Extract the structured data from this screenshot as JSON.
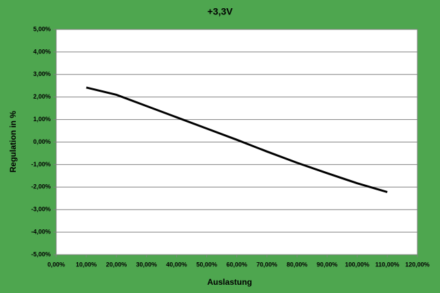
{
  "chart_data": {
    "type": "line",
    "title": "+3,3V",
    "x_label": "Auslastung",
    "y_label": "Regulation in %",
    "x": [
      10,
      20,
      30,
      40,
      50,
      60,
      70,
      80,
      90,
      100,
      110
    ],
    "values": [
      2.42,
      2.1,
      1.6,
      1.1,
      0.6,
      0.1,
      -0.42,
      -0.92,
      -1.38,
      -1.83,
      -2.22
    ],
    "color": "#000000",
    "xlim": [
      0,
      120
    ],
    "xticks": [
      {
        "value": 0,
        "label": "0,00%"
      },
      {
        "value": 10,
        "label": "10,00%"
      },
      {
        "value": 20,
        "label": "20,00%"
      },
      {
        "value": 30,
        "label": "30,00%"
      },
      {
        "value": 40,
        "label": "40,00%"
      },
      {
        "value": 50,
        "label": "50,00%"
      },
      {
        "value": 60,
        "label": "60,00%"
      },
      {
        "value": 70,
        "label": "70,00%"
      },
      {
        "value": 80,
        "label": "80,00%"
      },
      {
        "value": 90,
        "label": "90,00%"
      },
      {
        "value": 100,
        "label": "100,00%"
      },
      {
        "value": 110,
        "label": "110,00%"
      },
      {
        "value": 120,
        "label": "120,00%"
      }
    ],
    "ylim": [
      -5,
      5
    ],
    "yticks": [
      {
        "value": -5,
        "label": "-5,00%"
      },
      {
        "value": -4,
        "label": "-4,00%"
      },
      {
        "value": -3,
        "label": "-3,00%"
      },
      {
        "value": -2,
        "label": "-2,00%"
      },
      {
        "value": -1,
        "label": "-1,00%"
      },
      {
        "value": 0,
        "label": "0,00%"
      },
      {
        "value": 1,
        "label": "1,00%"
      },
      {
        "value": 2,
        "label": "2,00%"
      },
      {
        "value": 3,
        "label": "3,00%"
      },
      {
        "value": 4,
        "label": "4,00%"
      },
      {
        "value": 5,
        "label": "5,00%"
      }
    ],
    "grid": true
  }
}
